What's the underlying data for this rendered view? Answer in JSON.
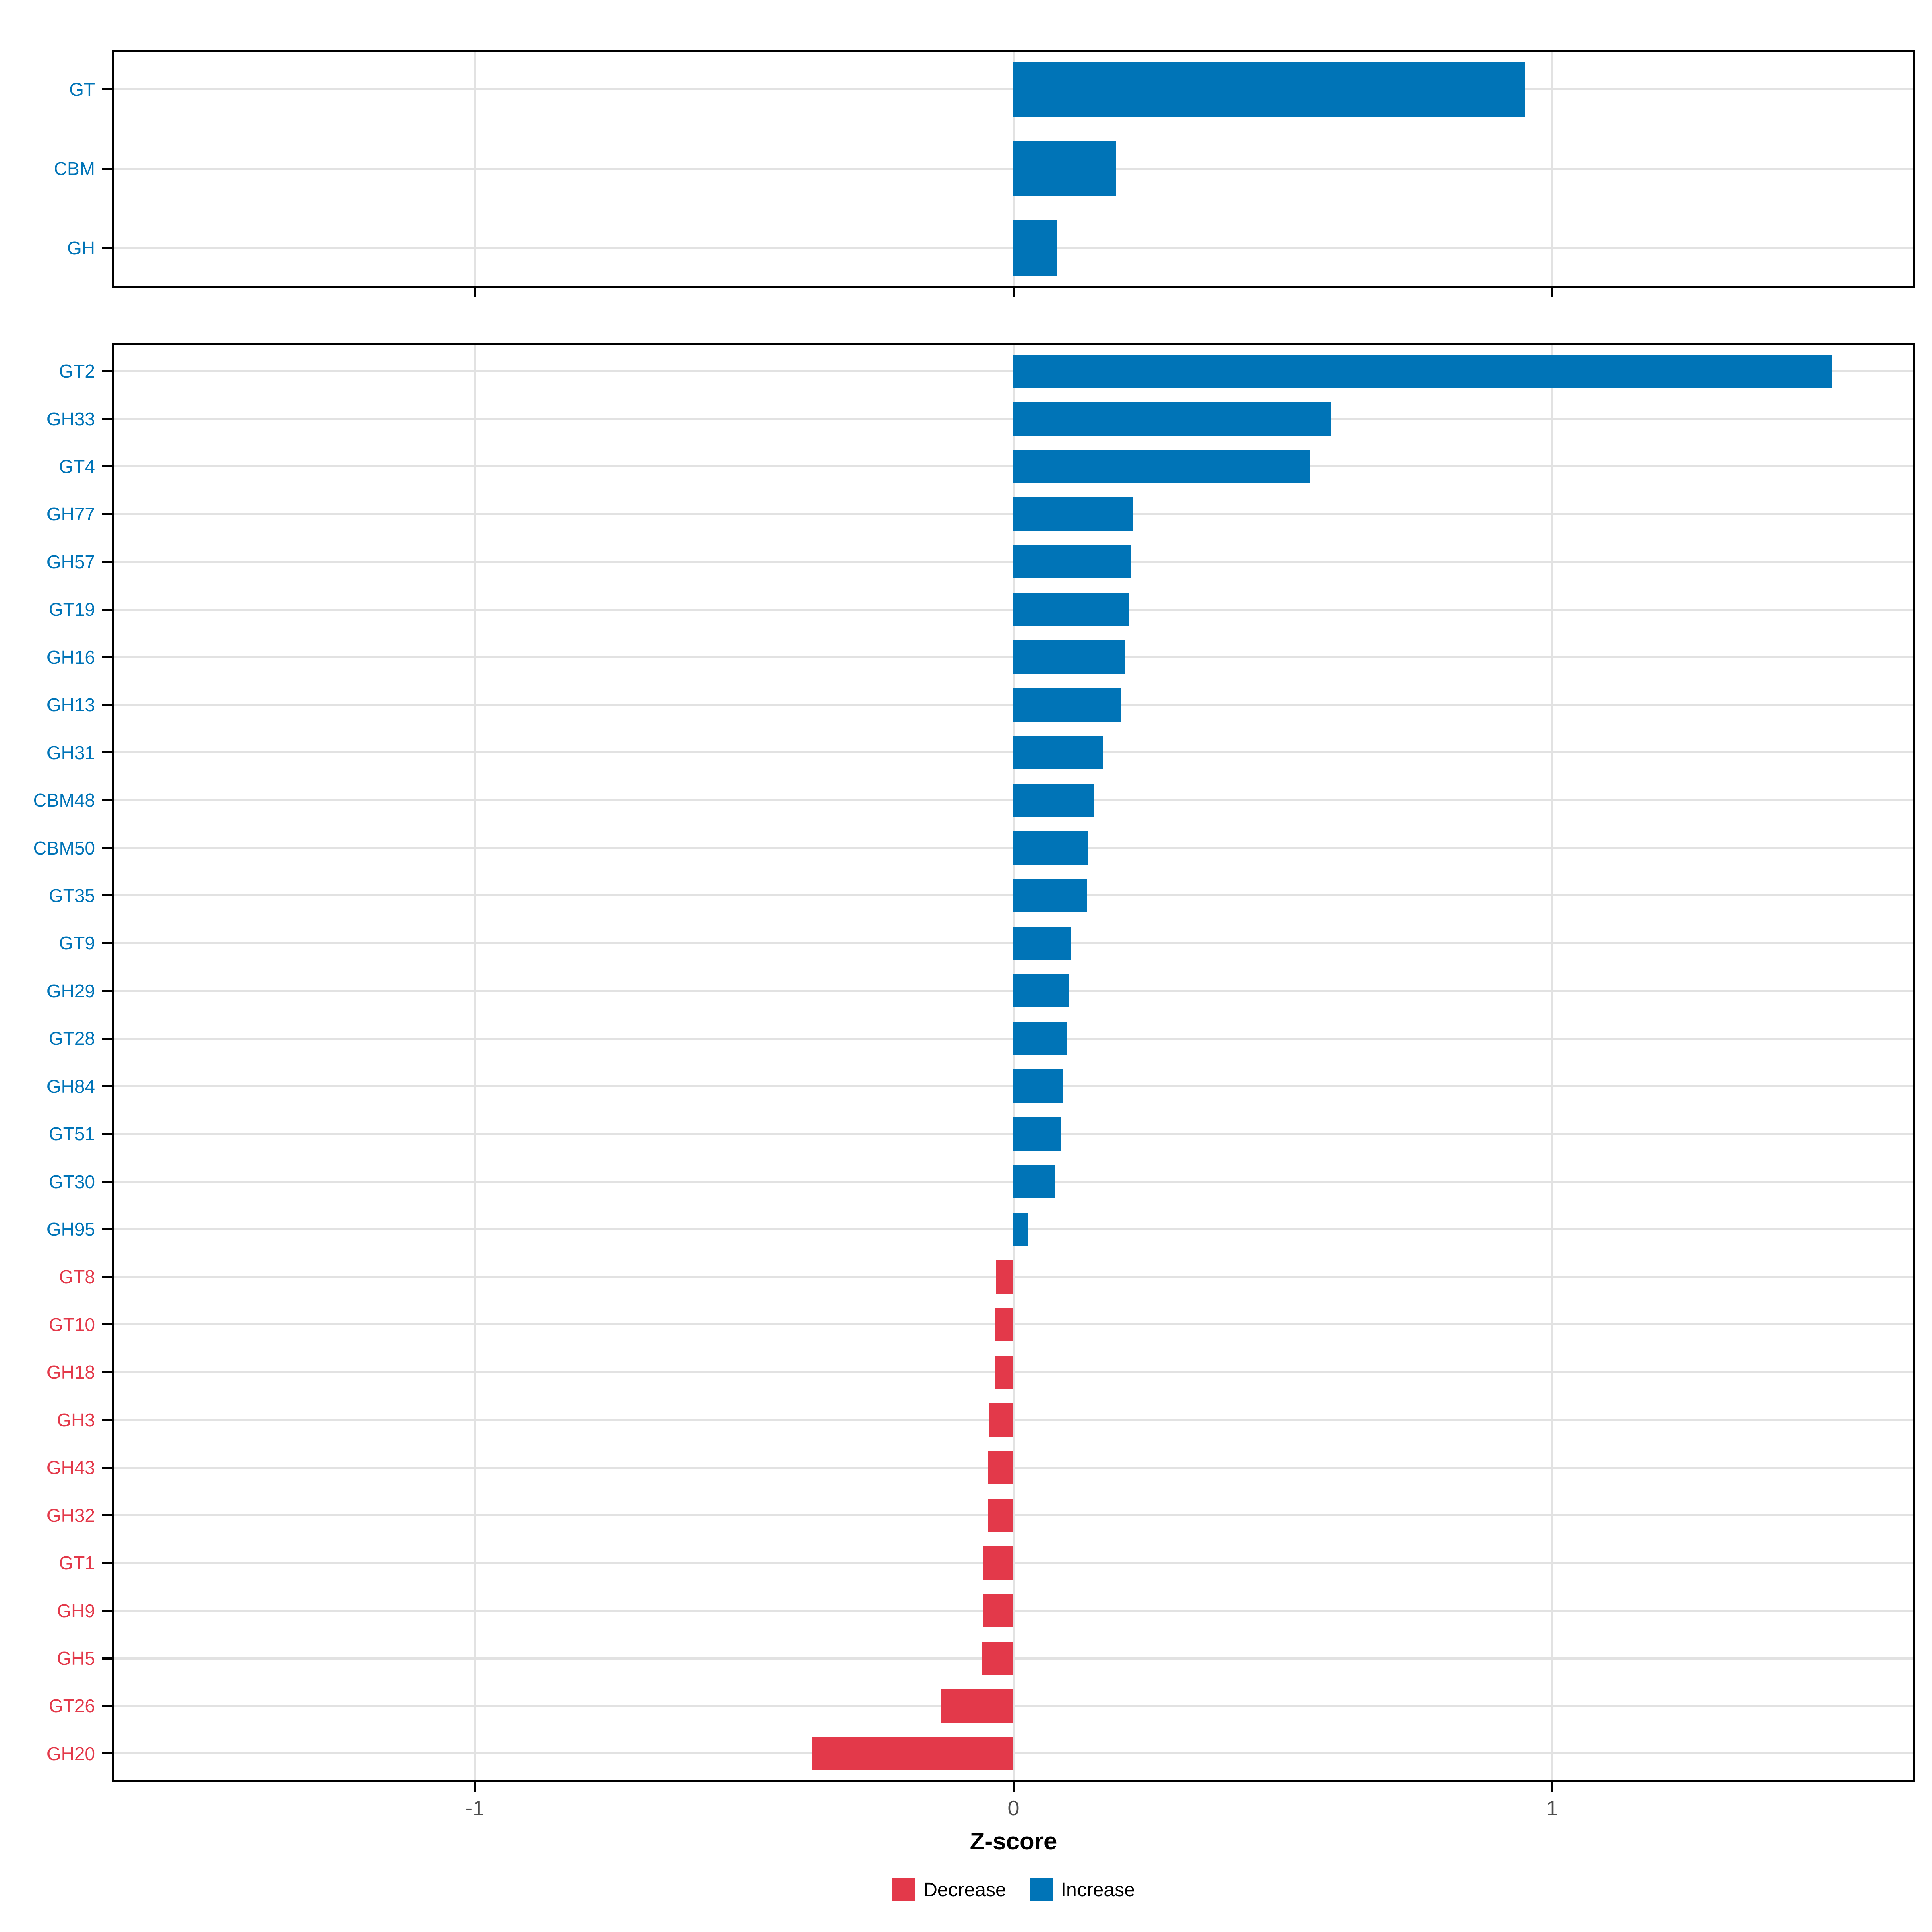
{
  "axis": {
    "title": "Z-score",
    "ticks": [
      "-1",
      "0",
      "1"
    ],
    "tick_values": [
      -1,
      0,
      1
    ],
    "range": [
      -1.674,
      1.674
    ]
  },
  "colors": {
    "increase": "#0074B7",
    "decrease": "#E3394A",
    "grid": "#E2E2E2",
    "panel_border": "#000000",
    "tick_mark": "#000000",
    "tick_text": "#4D4D4D",
    "background": "#FFFFFF"
  },
  "legend": {
    "position": "bottom",
    "items": [
      {
        "label": "Decrease",
        "key": "decrease"
      },
      {
        "label": "Increase",
        "key": "increase"
      }
    ]
  },
  "chart_data": [
    {
      "panel": "top",
      "type": "bar",
      "orientation": "horizontal",
      "title": "",
      "xlabel": "Z-score",
      "xlim": [
        -1.674,
        1.674
      ],
      "grid": "major-only",
      "categories": [
        "GT",
        "CBM",
        "GH"
      ],
      "values": [
        0.95,
        0.19,
        0.08
      ]
    },
    {
      "panel": "bottom",
      "type": "bar",
      "orientation": "horizontal",
      "title": "",
      "xlabel": "Z-score",
      "xlim": [
        -1.674,
        1.674
      ],
      "grid": "major-only",
      "categories": [
        "GT2",
        "GH33",
        "GT4",
        "GH77",
        "GH57",
        "GT19",
        "GH16",
        "GH13",
        "GH31",
        "CBM48",
        "CBM50",
        "GT35",
        "GT9",
        "GH29",
        "GT28",
        "GH84",
        "GT51",
        "GT30",
        "GH95",
        "GT8",
        "GT10",
        "GH18",
        "GH3",
        "GH43",
        "GH32",
        "GT1",
        "GH9",
        "GH5",
        "GT26",
        "GH20"
      ],
      "values": [
        1.52,
        0.59,
        0.55,
        0.221,
        0.219,
        0.214,
        0.208,
        0.2,
        0.166,
        0.149,
        0.138,
        0.136,
        0.106,
        0.104,
        0.099,
        0.093,
        0.089,
        0.077,
        0.026,
        -0.033,
        -0.034,
        -0.035,
        -0.045,
        -0.047,
        -0.048,
        -0.056,
        -0.057,
        -0.058,
        -0.135,
        -0.374
      ]
    }
  ]
}
